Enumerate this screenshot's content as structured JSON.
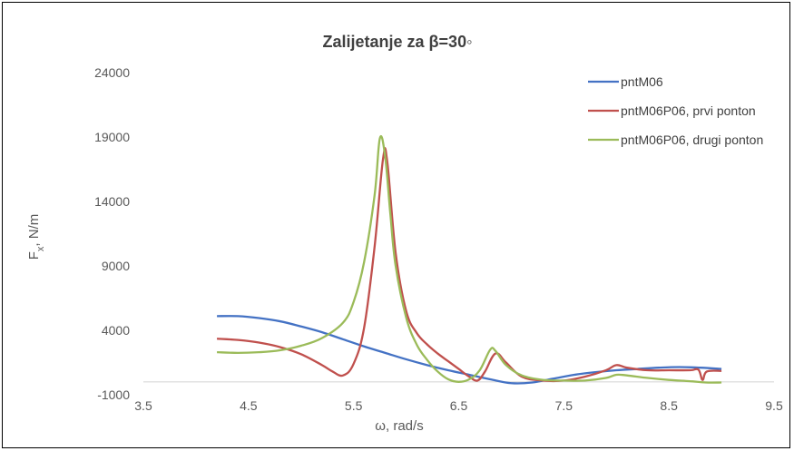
{
  "chart_data": {
    "type": "line",
    "title": "Zalijetanje za β=30◦",
    "xlabel": "ω, rad/s",
    "ylabel_main": "F",
    "ylabel_sub": "x",
    "ylabel_rest": ", N/m",
    "xlim": [
      3.5,
      9.5
    ],
    "ylim": [
      -1000,
      24000
    ],
    "xticks": [
      "3.5",
      "4.5",
      "5.5",
      "6.5",
      "7.5",
      "8.5",
      "9.5"
    ],
    "yticks": [
      "-1000",
      "4000",
      "9000",
      "14000",
      "19000",
      "24000"
    ],
    "grid": false,
    "legend_position": "top-right",
    "series": [
      {
        "name": "pntM06",
        "color": "#4472C4",
        "points": [
          [
            4.2,
            5100
          ],
          [
            4.4,
            5100
          ],
          [
            4.6,
            4950
          ],
          [
            4.8,
            4700
          ],
          [
            5.0,
            4300
          ],
          [
            5.2,
            3850
          ],
          [
            5.4,
            3300
          ],
          [
            5.6,
            2750
          ],
          [
            5.8,
            2250
          ],
          [
            6.0,
            1750
          ],
          [
            6.2,
            1300
          ],
          [
            6.4,
            900
          ],
          [
            6.6,
            550
          ],
          [
            6.8,
            200
          ],
          [
            7.0,
            -100
          ],
          [
            7.2,
            -50
          ],
          [
            7.4,
            250
          ],
          [
            7.6,
            550
          ],
          [
            7.8,
            750
          ],
          [
            8.0,
            900
          ],
          [
            8.2,
            1000
          ],
          [
            8.4,
            1100
          ],
          [
            8.6,
            1150
          ],
          [
            8.8,
            1100
          ],
          [
            9.0,
            1000
          ]
        ]
      },
      {
        "name": "pntM06P06, prvi ponton",
        "color": "#C0504D",
        "points": [
          [
            4.2,
            3350
          ],
          [
            4.4,
            3250
          ],
          [
            4.6,
            3050
          ],
          [
            4.8,
            2700
          ],
          [
            5.0,
            2150
          ],
          [
            5.2,
            1300
          ],
          [
            5.3,
            800
          ],
          [
            5.4,
            500
          ],
          [
            5.5,
            1400
          ],
          [
            5.6,
            4200
          ],
          [
            5.7,
            10500
          ],
          [
            5.78,
            17300
          ],
          [
            5.82,
            17100
          ],
          [
            5.9,
            10000
          ],
          [
            6.0,
            5500
          ],
          [
            6.1,
            3800
          ],
          [
            6.2,
            2900
          ],
          [
            6.3,
            2200
          ],
          [
            6.4,
            1600
          ],
          [
            6.5,
            1000
          ],
          [
            6.6,
            400
          ],
          [
            6.68,
            100
          ],
          [
            6.75,
            800
          ],
          [
            6.85,
            2200
          ],
          [
            6.95,
            1500
          ],
          [
            7.1,
            400
          ],
          [
            7.3,
            100
          ],
          [
            7.5,
            100
          ],
          [
            7.7,
            400
          ],
          [
            7.9,
            900
          ],
          [
            8.0,
            1300
          ],
          [
            8.1,
            1100
          ],
          [
            8.3,
            900
          ],
          [
            8.5,
            900
          ],
          [
            8.7,
            900
          ],
          [
            8.78,
            950
          ],
          [
            8.82,
            150
          ],
          [
            8.86,
            800
          ],
          [
            9.0,
            850
          ]
        ]
      },
      {
        "name": "pntM06P06, drugi ponton",
        "color": "#9BBB59",
        "points": [
          [
            4.2,
            2300
          ],
          [
            4.4,
            2250
          ],
          [
            4.6,
            2300
          ],
          [
            4.8,
            2450
          ],
          [
            5.0,
            2800
          ],
          [
            5.2,
            3400
          ],
          [
            5.4,
            4600
          ],
          [
            5.5,
            6200
          ],
          [
            5.6,
            9300
          ],
          [
            5.7,
            14500
          ],
          [
            5.75,
            18900
          ],
          [
            5.8,
            17500
          ],
          [
            5.85,
            13000
          ],
          [
            5.9,
            9000
          ],
          [
            6.0,
            5000
          ],
          [
            6.1,
            2900
          ],
          [
            6.2,
            1700
          ],
          [
            6.3,
            800
          ],
          [
            6.4,
            200
          ],
          [
            6.5,
            0
          ],
          [
            6.6,
            200
          ],
          [
            6.7,
            900
          ],
          [
            6.8,
            2500
          ],
          [
            6.85,
            2400
          ],
          [
            6.95,
            1300
          ],
          [
            7.1,
            500
          ],
          [
            7.3,
            150
          ],
          [
            7.5,
            100
          ],
          [
            7.7,
            100
          ],
          [
            7.9,
            300
          ],
          [
            8.0,
            550
          ],
          [
            8.1,
            500
          ],
          [
            8.3,
            300
          ],
          [
            8.5,
            150
          ],
          [
            8.7,
            50
          ],
          [
            8.85,
            -50
          ],
          [
            9.0,
            -50
          ]
        ]
      }
    ]
  }
}
